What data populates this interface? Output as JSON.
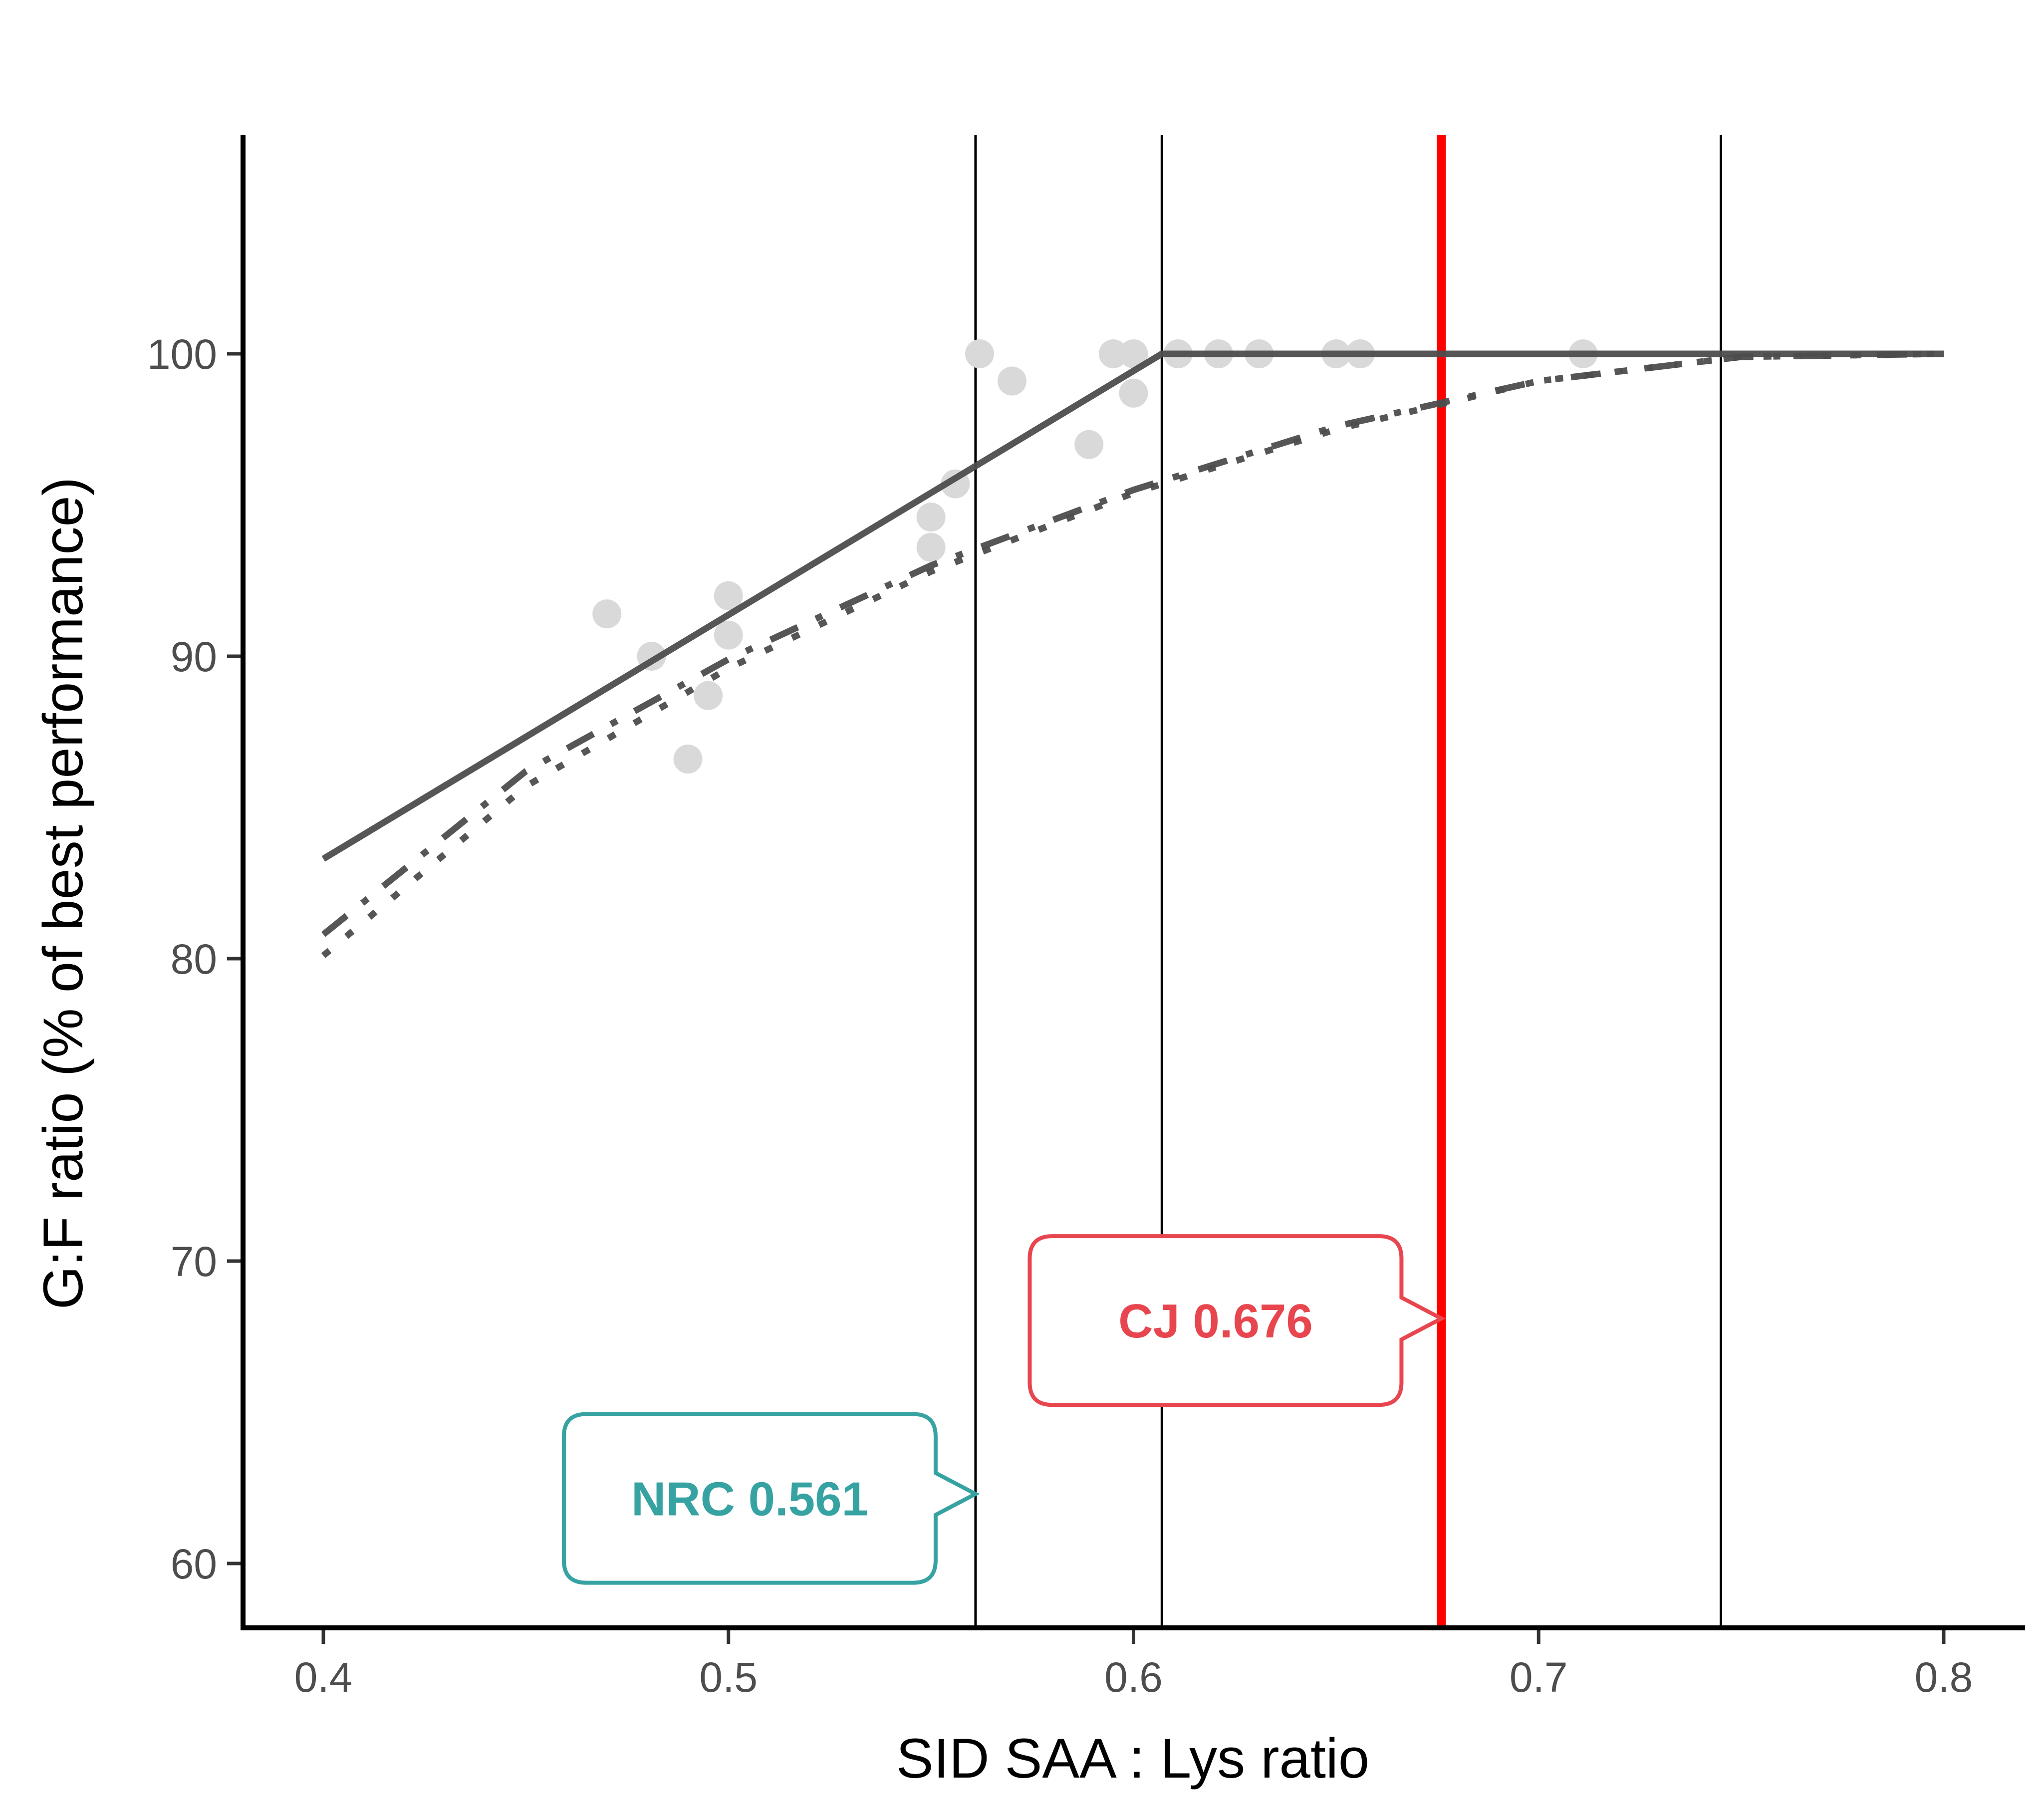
{
  "chart_data": {
    "type": "scatter",
    "title": "",
    "xlabel": "SID SAA : Lys ratio",
    "ylabel": "G:F ratio (% of best performance)",
    "xlim": [
      0.38,
      0.82
    ],
    "ylim": [
      57.8,
      107
    ],
    "x_ticks": [
      0.4,
      0.5,
      0.6,
      0.7,
      0.8
    ],
    "x_tick_labels": [
      "0.4",
      "0.5",
      "0.6",
      "0.7",
      "0.8"
    ],
    "y_ticks": [
      60,
      70,
      80,
      90,
      100
    ],
    "y_tick_labels": [
      "60",
      "70",
      "80",
      "90",
      "100"
    ],
    "grid": false,
    "points": {
      "name": "observations",
      "color": "#d9d9d9",
      "x": [
        0.47,
        0.481,
        0.49,
        0.495,
        0.5,
        0.5,
        0.55,
        0.55,
        0.556,
        0.562,
        0.57,
        0.589,
        0.595,
        0.6,
        0.6,
        0.611,
        0.621,
        0.631,
        0.65,
        0.656,
        0.711
      ],
      "y": [
        91.4,
        90.0,
        86.6,
        88.7,
        92.0,
        90.7,
        94.6,
        93.6,
        95.7,
        100.0,
        99.1,
        97.0,
        100.0,
        100.0,
        98.7,
        100.0,
        100.0,
        100.0,
        100.0,
        100.0,
        100.0
      ]
    },
    "series": [
      {
        "name": "broken-line",
        "style": "solid",
        "color": "#4d4d4d",
        "x": [
          0.4,
          0.607,
          0.8
        ],
        "y": [
          83.3,
          100.0,
          100.0
        ]
      },
      {
        "name": "curvilinear-dashdot",
        "style": "dashdot",
        "color": "#4d4d4d",
        "x": [
          0.4,
          0.45,
          0.5,
          0.55,
          0.6,
          0.65,
          0.7,
          0.75,
          0.8
        ],
        "y": [
          80.8,
          86.2,
          89.9,
          93.0,
          95.5,
          97.6,
          99.1,
          99.9,
          100.0
        ]
      },
      {
        "name": "curvilinear-dotted",
        "style": "dotted",
        "color": "#4d4d4d",
        "x": [
          0.4,
          0.45,
          0.5,
          0.55,
          0.6,
          0.65,
          0.7,
          0.75,
          0.8
        ],
        "y": [
          80.1,
          85.7,
          89.6,
          92.8,
          95.4,
          97.5,
          99.1,
          99.9,
          100.0
        ]
      }
    ],
    "vertical_lines": [
      {
        "name": "nrc-line",
        "x": 0.561,
        "color": "#000000"
      },
      {
        "name": "breakpoint-line",
        "x": 0.607,
        "color": "#000000"
      },
      {
        "name": "cj-line",
        "x": 0.676,
        "color": "#ff0000"
      },
      {
        "name": "plateau-line",
        "x": 0.745,
        "color": "#000000"
      }
    ],
    "annotations": [
      {
        "name": "nrc-callout",
        "text": "NRC 0.561",
        "x": 0.561,
        "y": 62.3,
        "color": "#36a2a2"
      },
      {
        "name": "cj-callout",
        "text": "CJ 0.676",
        "x": 0.676,
        "y": 68.1,
        "color": "#e8464f"
      }
    ]
  }
}
